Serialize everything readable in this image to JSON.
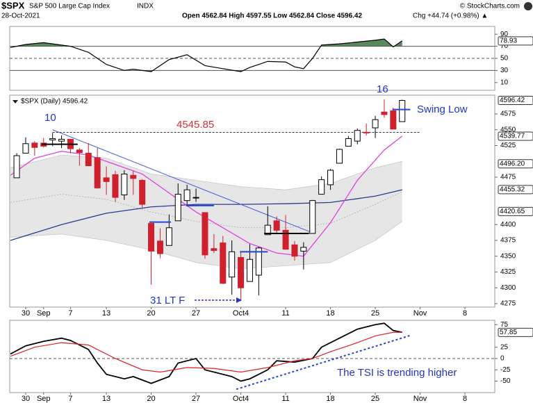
{
  "header": {
    "symbol": "$SPX",
    "name": "S&P 500 Large Cap Index",
    "exchange": "INDX",
    "date": "28-Oct-2021",
    "source": "© StockCharts.com",
    "quote": "Open 4562.84 High 4597.55 Low 4562.84 Close 4596.42",
    "change": "Chg +44.74 (+0.98%) ▲"
  },
  "chart_data": [
    {
      "type": "line",
      "ylim": [
        0,
        100
      ],
      "yticks": [
        90,
        70,
        50,
        30,
        10
      ],
      "value_tag": {
        "value": 78.93,
        "label": "78.93"
      },
      "levels": [
        70,
        50,
        30
      ],
      "xlim": [
        -0.78,
        53.33
      ],
      "series": [
        {
          "color": "#000000",
          "x": [
            -0.7,
            1,
            3,
            5,
            6,
            8,
            9,
            10,
            12,
            13,
            15,
            17,
            19,
            21,
            23,
            25,
            26,
            28,
            30,
            31,
            32,
            33,
            34,
            36,
            38,
            40,
            41,
            42,
            43
          ],
          "values": [
            68,
            73,
            76,
            72,
            70,
            60,
            50,
            40,
            30,
            32,
            28,
            48,
            56,
            38,
            33,
            28,
            35,
            45,
            44,
            36,
            33,
            50,
            72,
            74,
            77,
            80,
            82,
            69,
            79
          ]
        }
      ],
      "fill_above": "#5a8a5a",
      "fill_below": "#8a5a4a"
    },
    {
      "type": "candlestick",
      "legend": "$SPX (Daily) 4596.42",
      "xlim": [
        -0.78,
        53.33
      ],
      "ylim": [
        4270,
        4605
      ],
      "yticks": [
        4275,
        4300,
        4325,
        4350,
        4375,
        4400,
        4475,
        4525,
        4550,
        4575
      ],
      "value_tags": [
        4596.42,
        4539.77,
        {
          "value": 4496.2,
          "label": "4496.20"
        },
        4455.32,
        4420.65
      ],
      "xticks": [
        {
          "value": 1,
          "label": "30"
        },
        {
          "value": 3,
          "label": "Sep"
        },
        {
          "value": 6,
          "label": "7"
        },
        {
          "value": 10,
          "label": "13"
        },
        {
          "value": 15,
          "label": "20"
        },
        {
          "value": 20,
          "label": "27"
        },
        {
          "value": 25,
          "label": "Oct4"
        },
        {
          "value": 30,
          "label": "11"
        },
        {
          "value": 35,
          "label": "18"
        },
        {
          "value": 40,
          "label": "25"
        },
        {
          "value": 45,
          "label": "Nov"
        },
        {
          "value": 50,
          "label": "8"
        }
      ],
      "x": [
        0,
        1,
        2,
        3,
        4,
        5,
        6,
        7,
        8,
        9,
        10,
        11,
        12,
        13,
        14,
        15,
        16,
        17,
        18,
        19,
        20,
        21,
        22,
        23,
        24,
        25,
        26,
        27,
        28,
        29,
        30,
        31,
        32,
        33,
        34,
        35,
        36,
        37,
        38,
        39,
        40,
        41,
        42,
        43
      ],
      "open": [
        4474,
        4513,
        4529,
        4529,
        4534,
        4532,
        4535,
        4518,
        4513,
        4506,
        4474,
        4479,
        4447,
        4478,
        4470,
        4402,
        4374,
        4367,
        4406,
        4438,
        4442,
        4419,
        4362,
        4371,
        4317,
        4348,
        4310,
        4320,
        4384,
        4406,
        4391,
        4368,
        4358,
        4386,
        4448,
        4463,
        4497,
        4524,
        4532,
        4546,
        4553,
        4578,
        4580,
        4562.84
      ],
      "high": [
        4513,
        4538,
        4532,
        4537,
        4545,
        4541,
        4535,
        4521,
        4529,
        4521,
        4492,
        4485,
        4486,
        4485,
        4472,
        4402,
        4394,
        4416,
        4465,
        4463,
        4457,
        4419,
        4385,
        4382,
        4375,
        4356,
        4369,
        4365,
        4429,
        4413,
        4415,
        4374,
        4372,
        4439,
        4476,
        4488,
        4520,
        4540,
        4552,
        4560,
        4572,
        4598,
        4585,
        4597.55
      ],
      "low": [
        4474,
        4513,
        4509,
        4522,
        4524,
        4521,
        4513,
        4493,
        4493,
        4457,
        4447,
        4436,
        4439,
        4447,
        4427,
        4305,
        4347,
        4367,
        4406,
        4430,
        4436,
        4346,
        4355,
        4306,
        4289,
        4279,
        4310,
        4288,
        4384,
        4386,
        4360,
        4343,
        4329,
        4386,
        4448,
        4455,
        4497,
        4524,
        4527,
        4541,
        4537,
        4569,
        4551,
        4562.84
      ],
      "close": [
        4509,
        4528,
        4522,
        4524,
        4536,
        4535,
        4520,
        4514,
        4493,
        4458,
        4468,
        4443,
        4480,
        4473,
        4432,
        4358,
        4354,
        4395,
        4448,
        4455,
        4443,
        4352,
        4359,
        4307,
        4357,
        4300,
        4345,
        4363,
        4399,
        4391,
        4361,
        4350,
        4364,
        4438,
        4471,
        4486,
        4519,
        4536,
        4549,
        4545,
        4566,
        4574,
        4551,
        4596.42
      ],
      "up_color": "#ffffff",
      "down_color": "#d0202e",
      "overlays": [
        {
          "name": "upper",
          "color": "#c8c8c8",
          "x": [
            -0.7,
            5,
            10,
            15,
            20,
            25,
            30,
            35,
            40,
            43
          ],
          "values": [
            4490,
            4510,
            4505,
            4480,
            4470,
            4460,
            4455,
            4465,
            4490,
            4500
          ]
        },
        {
          "name": "lower",
          "color": "#c8c8c8",
          "x": [
            -0.7,
            5,
            10,
            15,
            20,
            25,
            30,
            35,
            40,
            43
          ],
          "values": [
            4380,
            4385,
            4375,
            4360,
            4340,
            4330,
            4335,
            4340,
            4375,
            4405
          ]
        },
        {
          "name": "mid",
          "color": "#aaaaaa",
          "x": [
            -0.7,
            5,
            10,
            15,
            20,
            25,
            30,
            35,
            40,
            43
          ],
          "values": [
            4435,
            4448,
            4440,
            4420,
            4405,
            4395,
            4395,
            4402,
            4432,
            4452
          ]
        },
        {
          "name": "ma",
          "color": "#2b3990",
          "x": [
            -0.7,
            5,
            10,
            15,
            20,
            25,
            30,
            35,
            40,
            43
          ],
          "values": [
            4375,
            4400,
            4418,
            4428,
            4432,
            4432,
            4433,
            4435,
            4445,
            4455
          ]
        },
        {
          "name": "ema",
          "color": "#e040e0",
          "x": [
            -0.7,
            2,
            5,
            8,
            11,
            14,
            17,
            20,
            23,
            26,
            29,
            32,
            35,
            38,
            41,
            43
          ],
          "values": [
            4478,
            4505,
            4516,
            4510,
            4495,
            4480,
            4450,
            4420,
            4395,
            4370,
            4355,
            4350,
            4403,
            4470,
            4518,
            4540
          ]
        }
      ],
      "band_color": "#e6e6e6",
      "hline": {
        "value": 4545.85,
        "x": [
          4,
          45
        ],
        "color": "#333333"
      },
      "trendline": {
        "x": [
          4,
          33
        ],
        "values": [
          4550,
          4387
        ],
        "color": "#4a5be0"
      },
      "levels": [
        {
          "x": [
            2.8,
            6.8
          ],
          "value": 4527,
          "color": "#000000"
        },
        {
          "x": [
            14.8,
            17.2
          ],
          "value": 4404,
          "color": "#2244dd"
        },
        {
          "x": [
            18.9,
            22
          ],
          "value": 4430,
          "color": "#2244dd"
        },
        {
          "x": [
            24.9,
            28
          ],
          "value": 4357,
          "color": "#2244dd"
        },
        {
          "x": [
            27.6,
            32.6
          ],
          "value": 4386,
          "color": "#000000"
        },
        {
          "x": [
            41.9,
            43.9
          ],
          "value": 4582,
          "color": "#2244dd"
        }
      ],
      "annotations": [
        "10",
        "16",
        "4545.85",
        "Swing Low",
        "31 LT F"
      ]
    },
    {
      "type": "line",
      "ylim": [
        -75,
        83
      ],
      "yticks": [
        75,
        25,
        0,
        -25,
        -50
      ],
      "value_tag": {
        "value": 57.85,
        "label": "57.85"
      },
      "xlim": [
        -0.78,
        53.33
      ],
      "xticks": [
        {
          "value": 1,
          "label": "30"
        },
        {
          "value": 3,
          "label": "Sep"
        },
        {
          "value": 6,
          "label": "7"
        },
        {
          "value": 10,
          "label": "13"
        },
        {
          "value": 15,
          "label": "20"
        },
        {
          "value": 20,
          "label": "27"
        },
        {
          "value": 25,
          "label": "Oct4"
        },
        {
          "value": 30,
          "label": "11"
        },
        {
          "value": 35,
          "label": "18"
        },
        {
          "value": 40,
          "label": "25"
        },
        {
          "value": 45,
          "label": "Nov"
        },
        {
          "value": 50,
          "label": "8"
        }
      ],
      "series": [
        {
          "color": "#000000",
          "x": [
            -0.7,
            1,
            3,
            5,
            6,
            8,
            9,
            10,
            12,
            13,
            15,
            17,
            18,
            20,
            21,
            24,
            25,
            26,
            28,
            29,
            31,
            33,
            34,
            36,
            38,
            40,
            41,
            42,
            43
          ],
          "values": [
            10,
            28,
            38,
            45,
            40,
            20,
            -10,
            -35,
            -45,
            -40,
            -55,
            -40,
            -10,
            0,
            -25,
            -40,
            -50,
            -45,
            -25,
            -5,
            -8,
            0,
            25,
            45,
            65,
            75,
            78,
            62,
            58
          ]
        },
        {
          "color": "#e02020",
          "x": [
            -0.7,
            2,
            5,
            8,
            11,
            14,
            16,
            19,
            22,
            25,
            28,
            31,
            33,
            35,
            38,
            40,
            42,
            43
          ],
          "values": [
            5,
            25,
            35,
            30,
            0,
            -25,
            -30,
            -20,
            -22,
            -30,
            -20,
            -5,
            0,
            15,
            35,
            50,
            58,
            58
          ]
        }
      ],
      "trendline": {
        "x": [
          24.5,
          43.9
        ],
        "values": [
          -68,
          51
        ],
        "color": "#2244dd"
      },
      "annotation": "The TSI is trending higher"
    }
  ]
}
